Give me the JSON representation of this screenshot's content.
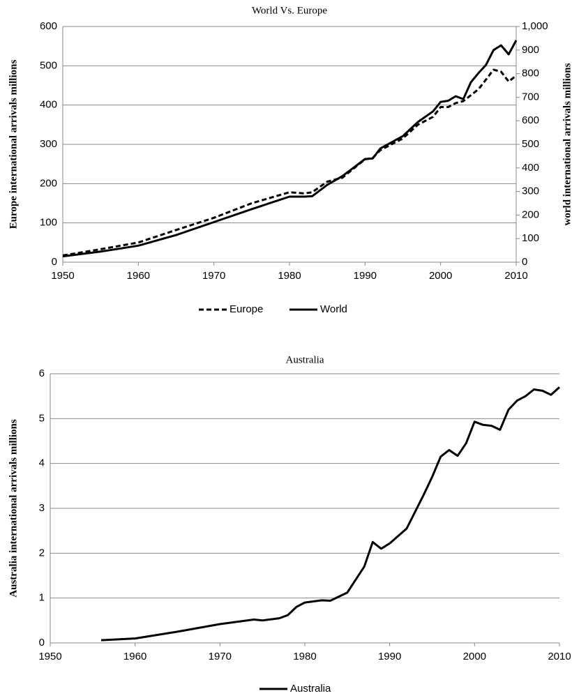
{
  "chart_data": [
    {
      "type": "line",
      "title": "World Vs. Europe",
      "ylabel": "Europe international arrivals millions",
      "y2label": "world international arrivals millions",
      "x": [
        1950,
        1955,
        1960,
        1965,
        1970,
        1975,
        1980,
        1982,
        1983,
        1985,
        1987,
        1990,
        1991,
        1992,
        1995,
        1997,
        1999,
        2000,
        2001,
        2002,
        2003,
        2004,
        2005,
        2006,
        2007,
        2008,
        2009,
        2010
      ],
      "series": [
        {
          "name": "Europe",
          "color": "#000000",
          "dash": "dashed",
          "values": [
            17,
            33,
            50,
            82,
            113,
            150,
            178,
            175,
            178,
            205,
            215,
            262,
            265,
            285,
            315,
            350,
            370,
            395,
            395,
            405,
            410,
            425,
            440,
            465,
            490,
            485,
            460,
            475
          ]
        },
        {
          "name": "World",
          "color": "#000000",
          "dash": "solid",
          "axis": "y2",
          "values": [
            25,
            45,
            70,
            115,
            170,
            225,
            278,
            278,
            280,
            328,
            365,
            438,
            440,
            482,
            535,
            595,
            640,
            680,
            685,
            704,
            692,
            763,
            802,
            837,
            900,
            920,
            882,
            941
          ]
        }
      ],
      "xlim": [
        1950,
        2010
      ],
      "xticks": [
        1950,
        1960,
        1970,
        1980,
        1990,
        2000,
        2010
      ],
      "ylim": [
        0,
        600
      ],
      "yticks": [
        0,
        100,
        200,
        300,
        400,
        500,
        600
      ],
      "y2lim": [
        0,
        1000
      ],
      "y2ticks": [
        0,
        100,
        200,
        300,
        400,
        500,
        600,
        700,
        800,
        900,
        {
          "value": 1000,
          "label": "1,000"
        }
      ],
      "grid": true,
      "legend": "bottom"
    },
    {
      "type": "line",
      "title": "Australia",
      "ylabel": "Australia international arrivals millions",
      "x": [
        1956,
        1960,
        1965,
        1970,
        1974,
        1975,
        1977,
        1978,
        1979,
        1980,
        1982,
        1983,
        1985,
        1987,
        1988,
        1989,
        1990,
        1992,
        1994,
        1995,
        1996,
        1997,
        1998,
        1999,
        2000,
        2001,
        2002,
        2003,
        2004,
        2005,
        2006,
        2007,
        2008,
        2009,
        2010
      ],
      "series": [
        {
          "name": "Australia",
          "color": "#000000",
          "dash": "solid",
          "values": [
            0.06,
            0.1,
            0.25,
            0.42,
            0.52,
            0.5,
            0.55,
            0.62,
            0.8,
            0.9,
            0.95,
            0.94,
            1.12,
            1.7,
            2.25,
            2.1,
            2.22,
            2.55,
            3.3,
            3.7,
            4.15,
            4.3,
            4.17,
            4.45,
            4.93,
            4.86,
            4.84,
            4.75,
            5.2,
            5.4,
            5.5,
            5.65,
            5.62,
            5.53,
            5.7
          ]
        }
      ],
      "xlim": [
        1950,
        2010
      ],
      "xticks": [
        1950,
        1960,
        1970,
        1980,
        1990,
        2000,
        2010
      ],
      "ylim": [
        0,
        6
      ],
      "yticks": [
        0,
        1,
        2,
        3,
        4,
        5,
        6
      ],
      "grid": true,
      "legend": "bottom"
    }
  ]
}
